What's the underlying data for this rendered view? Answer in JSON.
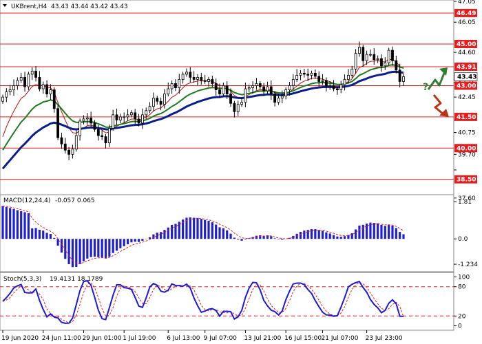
{
  "header": {
    "symbol": "UKBrent,H4",
    "ohlc": "43.43 43.44 43.42 43.43"
  },
  "chart_data": {
    "type": "candlestick",
    "price": {
      "ylim": [
        37.0,
        47.05
      ],
      "ticks": [
        "47.05",
        "46.40",
        "45.75",
        "45.10",
        "44.40",
        "43.75",
        "43.10",
        "42.45",
        "41.80",
        "41.10",
        "40.45",
        "39.80",
        "39.15",
        "38.50",
        "37.85"
      ],
      "tick_values": [
        47.05,
        46.4,
        45.75,
        45.1,
        44.4,
        43.75,
        43.1,
        42.45,
        41.8,
        41.1,
        40.45,
        39.8,
        39.15,
        38.5,
        37.85
      ],
      "shown_ticks": [
        {
          "v": 47.05,
          "t": "47.05"
        },
        {
          "v": 46.05,
          "t": "46.05"
        },
        {
          "v": 44.6,
          "t": "44.60"
        },
        {
          "v": 43.15,
          "t": "43.15"
        },
        {
          "v": 42.45,
          "t": "42.45"
        },
        {
          "v": 41.35,
          "t": ""
        },
        {
          "v": 40.75,
          "t": "40.75"
        },
        {
          "v": 39.7,
          "t": "39.70"
        },
        {
          "v": 38.95,
          "t": ""
        },
        {
          "v": 37.6,
          "t": "37.60"
        }
      ],
      "current": "43.43",
      "levels": [
        {
          "label": "46.49",
          "value": 46.49
        },
        {
          "label": "45.00",
          "value": 45.0
        },
        {
          "label": "43.91",
          "value": 43.91
        },
        {
          "label": "43.00",
          "value": 43.0
        },
        {
          "label": "41.50",
          "value": 41.5
        },
        {
          "label": "40.00",
          "value": 40.0
        },
        {
          "label": "38.50",
          "value": 38.5
        }
      ],
      "closes": [
        42.45,
        42.7,
        42.8,
        43.0,
        43.25,
        43.4,
        42.95,
        43.55,
        43.7,
        43.4,
        42.85,
        43.05,
        42.6,
        42.8,
        41.9,
        40.5,
        40.2,
        39.9,
        39.7,
        39.95,
        40.6,
        41.3,
        41.4,
        41.45,
        41.2,
        40.9,
        40.6,
        40.55,
        40.25,
        40.95,
        41.6,
        41.35,
        41.5,
        41.5,
        41.6,
        41.7,
        41.4,
        41.2,
        41.6,
        41.8,
        42.0,
        42.4,
        42.25,
        42.1,
        42.6,
        42.85,
        43.1,
        42.9,
        43.3,
        43.55,
        43.65,
        43.4,
        43.3,
        43.4,
        43.25,
        43.2,
        43.3,
        43.1,
        42.8,
        42.6,
        43.0,
        42.6,
        42.15,
        41.75,
        42.1,
        42.2,
        42.85,
        42.9,
        43.0,
        43.1,
        42.95,
        42.75,
        42.95,
        42.6,
        42.2,
        42.4,
        42.5,
        42.8,
        43.0,
        43.3,
        43.5,
        43.6,
        43.55,
        43.5,
        43.6,
        43.45,
        43.2,
        43.25,
        43.0,
        43.0,
        42.85,
        42.8,
        43.05,
        43.3,
        43.5,
        43.8,
        44.55,
        44.85,
        44.2,
        44.5,
        44.5,
        44.25,
        44.3,
        43.95,
        44.1,
        44.7,
        44.2,
        43.75,
        43.2,
        43.43
      ]
    },
    "macd": {
      "label": "MACD(12,24,4)",
      "values": "-0.057 0.065",
      "ticks": [
        {
          "v": 1.81,
          "t": "1.81"
        },
        {
          "v": 0.0,
          "t": "0.0"
        },
        {
          "v": -1.234,
          "t": "-1.234"
        }
      ],
      "ylim": [
        -1.5,
        2.05
      ]
    },
    "stoch": {
      "label": "Stoch(5,3,3)",
      "values": "19.4131 18.1789",
      "ticks": [
        {
          "v": 100,
          "t": "100"
        },
        {
          "v": 80,
          "t": "80"
        },
        {
          "v": 20,
          "t": "20"
        },
        {
          "v": 0,
          "t": "0"
        }
      ],
      "levels": [
        80,
        20
      ],
      "ylim": [
        -5,
        105
      ]
    },
    "x_labels": [
      "19 Jun 2020",
      "24 Jun 11:00",
      "29 Jun 01:00",
      "1 Jul 19:00",
      "6 Jul 13:00",
      "9 Jul 07:00",
      "13 Jul 21:00",
      "16 Jul 15:00",
      "21 Jul 07:00",
      "23 Jul 23:00"
    ],
    "x_label_index": [
      0,
      11,
      22,
      33,
      45,
      55,
      66,
      77,
      87,
      99
    ],
    "annotation": "?"
  },
  "colors": {
    "level_line": "#e02020",
    "level_box": "#e02020",
    "ma_fast": "#b01010",
    "ma_mid": "#1e7a1e",
    "ma_slow": "#0a1f8a",
    "macd_bar": "#2020d0",
    "stoch_main": "#1a1ad8",
    "stoch_signal": "#e02020",
    "arrow_up": "#2e7d32",
    "arrow_down": "#b5381a",
    "current_box": "#ffffff"
  }
}
